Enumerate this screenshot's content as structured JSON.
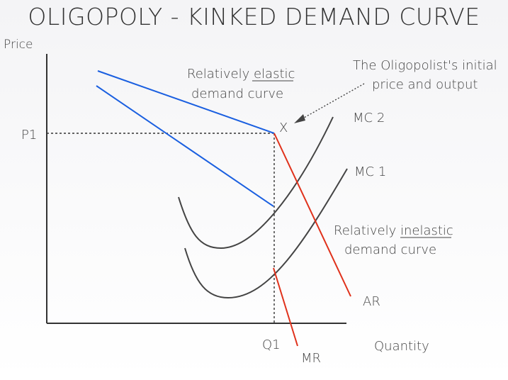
{
  "title": "OLIGOPOLY - KINKED DEMAND CURVE",
  "axes": {
    "y_label": "Price",
    "x_label": "Quantity",
    "price_mark": "P1",
    "quantity_mark": "Q1"
  },
  "annotations": {
    "elastic_line1_prefix": "Relatively ",
    "elastic_word": "elastic",
    "elastic_line2": "demand curve",
    "inelastic_line1_prefix": "Relatively ",
    "inelastic_word": "inelastic",
    "inelastic_line2": "demand curve",
    "initial_line1": "The Oligopolist's initial",
    "initial_line2": "price and output",
    "kink_marker": "X"
  },
  "curves": {
    "mc2": "MC 2",
    "mc1": "MC 1",
    "ar": "AR",
    "mr": "MR"
  },
  "colors": {
    "demand_elastic": "#1a5fe0",
    "demand_inelastic": "#e0311b",
    "mc_curves": "#444444",
    "axes": "#333333"
  }
}
